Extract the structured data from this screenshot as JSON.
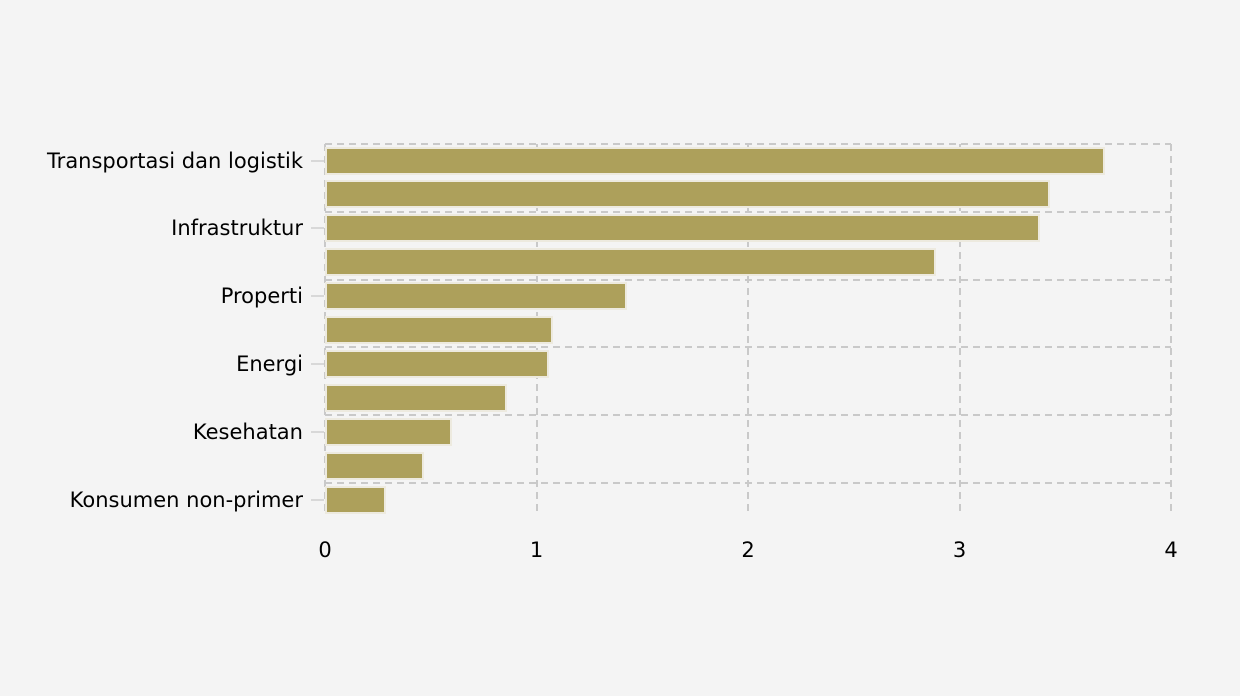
{
  "background_color": "#f4f4f4",
  "chart_data": {
    "type": "bar",
    "orientation": "horizontal",
    "title": "",
    "xlabel": "",
    "ylabel": "",
    "xlim": [
      0,
      4
    ],
    "xticks": [
      "0",
      "1",
      "2",
      "3",
      "4"
    ],
    "grid": "dashed, group separators horizontal + value gridlines vertical",
    "legend": "none",
    "bar_color": "#ada05b",
    "bar_edge_color": "#edeadf",
    "grid_color": "#c9c9c9",
    "tick_color": "#d8d8d8",
    "text_color": "#000000",
    "categories": [
      "Transportasi dan logistik",
      "Infrastruktur",
      "Properti",
      "Energi",
      "Kesehatan",
      "Konsumen non-primer"
    ],
    "bars": [
      {
        "label": "Transportasi dan logistik",
        "value": 3.69
      },
      {
        "label": "",
        "value": 3.43
      },
      {
        "label": "Infrastruktur",
        "value": 3.38
      },
      {
        "label": "",
        "value": 2.89
      },
      {
        "label": "Properti",
        "value": 1.43
      },
      {
        "label": "",
        "value": 1.08
      },
      {
        "label": "Energi",
        "value": 1.06
      },
      {
        "label": "",
        "value": 0.86
      },
      {
        "label": "Kesehatan",
        "value": 0.6
      },
      {
        "label": "",
        "value": 0.47
      },
      {
        "label": "Konsumen non-primer",
        "value": 0.29
      }
    ]
  }
}
